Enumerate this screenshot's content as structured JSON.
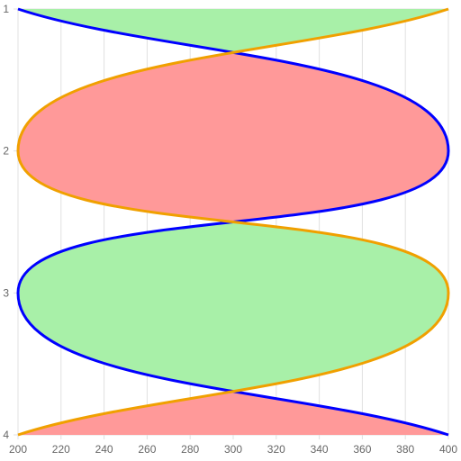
{
  "chart_data": {
    "type": "area",
    "orientation": "vertical-index",
    "y_categories": [
      "1",
      "2",
      "3",
      "4"
    ],
    "x_ticks": [
      200,
      220,
      240,
      260,
      280,
      300,
      320,
      340,
      360,
      380,
      400
    ],
    "xlim": [
      200,
      400
    ],
    "ylim": [
      1,
      4
    ],
    "grid": true,
    "legend": "none",
    "series": [
      {
        "color": "#0000ff",
        "values": [
          200,
          400,
          200,
          400
        ]
      },
      {
        "color": "#f0a000",
        "values": [
          400,
          200,
          400,
          200
        ]
      }
    ],
    "fill_colors": {
      "first_greater": "#ff9999",
      "second_greater": "#a8f0a8"
    },
    "title": "",
    "xlabel": "",
    "ylabel": ""
  }
}
